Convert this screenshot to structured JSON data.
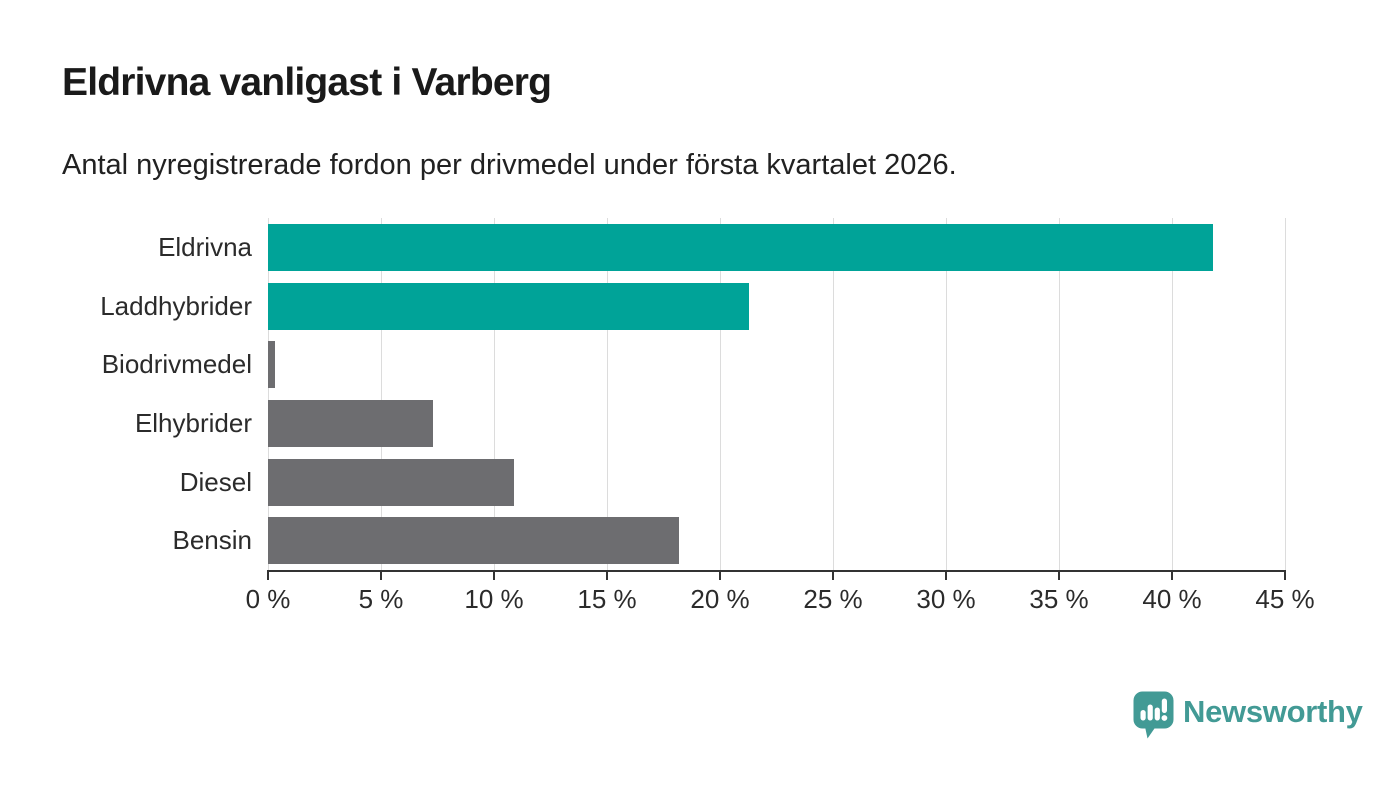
{
  "header": {
    "title": "Eldrivna vanligast i Varberg",
    "subtitle": "Antal nyregistrerade fordon per drivmedel under första kvartalet 2026."
  },
  "chart_data": {
    "type": "bar",
    "orientation": "horizontal",
    "title": "Eldrivna vanligast i Varberg",
    "subtitle": "Antal nyregistrerade fordon per drivmedel under första kvartalet 2026.",
    "categories": [
      "Eldrivna",
      "Laddhybrider",
      "Biodrivmedel",
      "Elhybrider",
      "Diesel",
      "Bensin"
    ],
    "values": [
      41.8,
      21.3,
      0.3,
      7.3,
      10.9,
      18.2
    ],
    "unit": "%",
    "bar_colors": [
      "#00a398",
      "#00a398",
      "#6d6d70",
      "#6d6d70",
      "#6d6d70",
      "#6d6d70"
    ],
    "xlabel": "",
    "ylabel": "",
    "xlim": [
      0,
      45
    ],
    "x_tick_step": 5,
    "x_tick_labels": [
      "0 %",
      "5 %",
      "10 %",
      "15 %",
      "20 %",
      "25 %",
      "30 %",
      "35 %",
      "40 %",
      "45 %"
    ],
    "grid": true,
    "legend": "none"
  },
  "colors": {
    "highlight_bar": "#00a398",
    "default_bar": "#6d6d70",
    "axis": "#333333",
    "gridline": "#dcdcdc",
    "title_text": "#1a1a1a",
    "label_text": "#2b2b2b",
    "logo": "#429a95"
  },
  "logo": {
    "text": "Newsworthy",
    "icon": "newsworthy-speech-bubble-barchart-icon"
  }
}
